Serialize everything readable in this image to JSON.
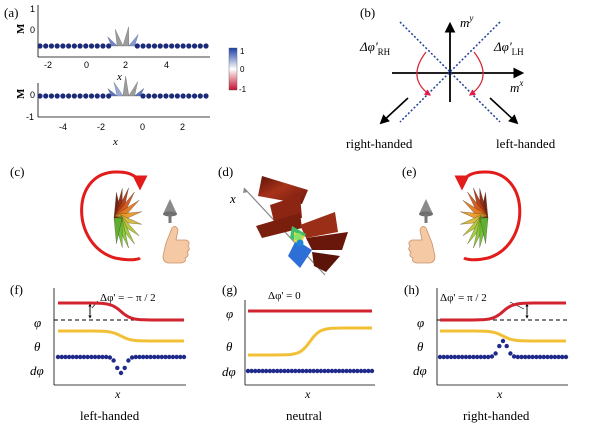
{
  "panels": {
    "a": {
      "label": "(a)",
      "top_plot": {
        "ylabel": "M",
        "xlabel": "x",
        "yticks": [
          "1",
          "0",
          "-1"
        ],
        "xticks": [
          "-2",
          "0",
          "2",
          "4"
        ]
      },
      "bottom_plot": {
        "ylabel": "M",
        "xlabel": "x",
        "yticks": [
          "1",
          "0",
          "-1"
        ],
        "xticks": [
          "-4",
          "-2",
          "0",
          "2"
        ]
      },
      "colorbar": {
        "ticks": [
          "1",
          "0",
          "-1"
        ],
        "top_color": "#1a3fa8",
        "mid_color": "#ffffff",
        "bottom_color": "#c8102e"
      }
    },
    "b": {
      "label": "(b)",
      "axis_y": "m",
      "axis_y_sup": "y",
      "axis_x": "m",
      "axis_x_sup": "x",
      "angle_rh": "Δφ'",
      "angle_rh_sub": "RH",
      "angle_lh": "Δφ'",
      "angle_lh_sub": "LH",
      "label_right": "right-handed",
      "label_left": "left-handed"
    },
    "c": {
      "label": "(c)"
    },
    "d": {
      "label": "(d)",
      "axis": "x"
    },
    "e": {
      "label": "(e)"
    },
    "f": {
      "label": "(f)",
      "annotation": "Δφ' = − π / 2",
      "ylabels": [
        "φ",
        "θ",
        "dφ"
      ],
      "xlabel": "x",
      "caption": "left-handed"
    },
    "g": {
      "label": "(g)",
      "annotation": "Δφ' = 0",
      "ylabels": [
        "φ",
        "θ",
        "dφ"
      ],
      "xlabel": "x",
      "caption": "neutral"
    },
    "h": {
      "label": "(h)",
      "annotation": "Δφ' = π / 2",
      "ylabels": [
        "φ",
        "θ",
        "dφ"
      ],
      "xlabel": "x",
      "caption": "right-handed"
    }
  },
  "colors": {
    "phi_curve": "#d1242f",
    "theta_curve": "#f2c037",
    "dphi_curve": "#1f2a8a",
    "loop_arrow": "#e21b1b",
    "diag_lines": "#1f3f9a",
    "rotation_arrow": "#d62839",
    "hand_skin": "#f4c9a4"
  }
}
